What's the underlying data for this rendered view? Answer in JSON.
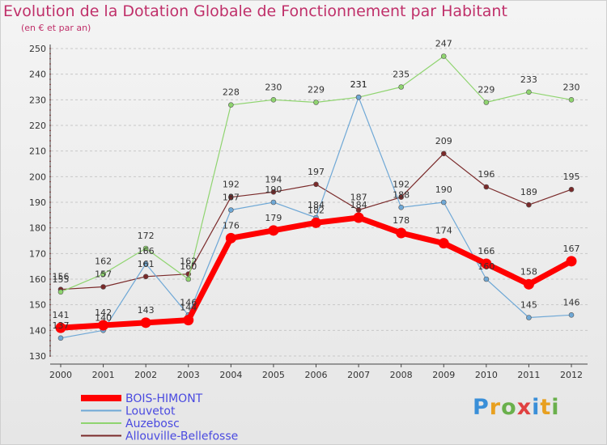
{
  "chart_data": {
    "type": "line",
    "title": "Evolution de la Dotation Globale de Fonctionnement par Habitant",
    "subtitle": "(en € et par an)",
    "x": [
      "2000",
      "2001",
      "2002",
      "2003",
      "2004",
      "2005",
      "2006",
      "2007",
      "2008",
      "2009",
      "2010",
      "2011",
      "2012"
    ],
    "ylim": [
      130,
      250
    ],
    "yticks": [
      130,
      140,
      150,
      160,
      170,
      180,
      190,
      200,
      210,
      220,
      230,
      240,
      250
    ],
    "grid": "horizontal-dashed",
    "legend_position": "bottom-left",
    "series": [
      {
        "name": "BOIS-HIMONT",
        "color": "#ff0000",
        "values": [
          141,
          142,
          143,
          144,
          176,
          179,
          182,
          184,
          178,
          174,
          166,
          158,
          167
        ]
      },
      {
        "name": "Louvetot",
        "color": "#6fa8d6",
        "values": [
          137,
          140,
          166,
          146,
          187,
          190,
          184,
          231,
          188,
          190,
          160,
          145,
          146
        ]
      },
      {
        "name": "Auzebosc",
        "color": "#8fd46f",
        "values": [
          155,
          162,
          172,
          160,
          228,
          230,
          229,
          231,
          235,
          247,
          229,
          233,
          230
        ]
      },
      {
        "name": "Allouville-Bellefosse",
        "color": "#7a2a2a",
        "values": [
          156,
          157,
          161,
          162,
          192,
          194,
          197,
          187,
          192,
          209,
          196,
          189,
          195
        ]
      }
    ]
  },
  "logo": {
    "text": "Proxiti"
  }
}
